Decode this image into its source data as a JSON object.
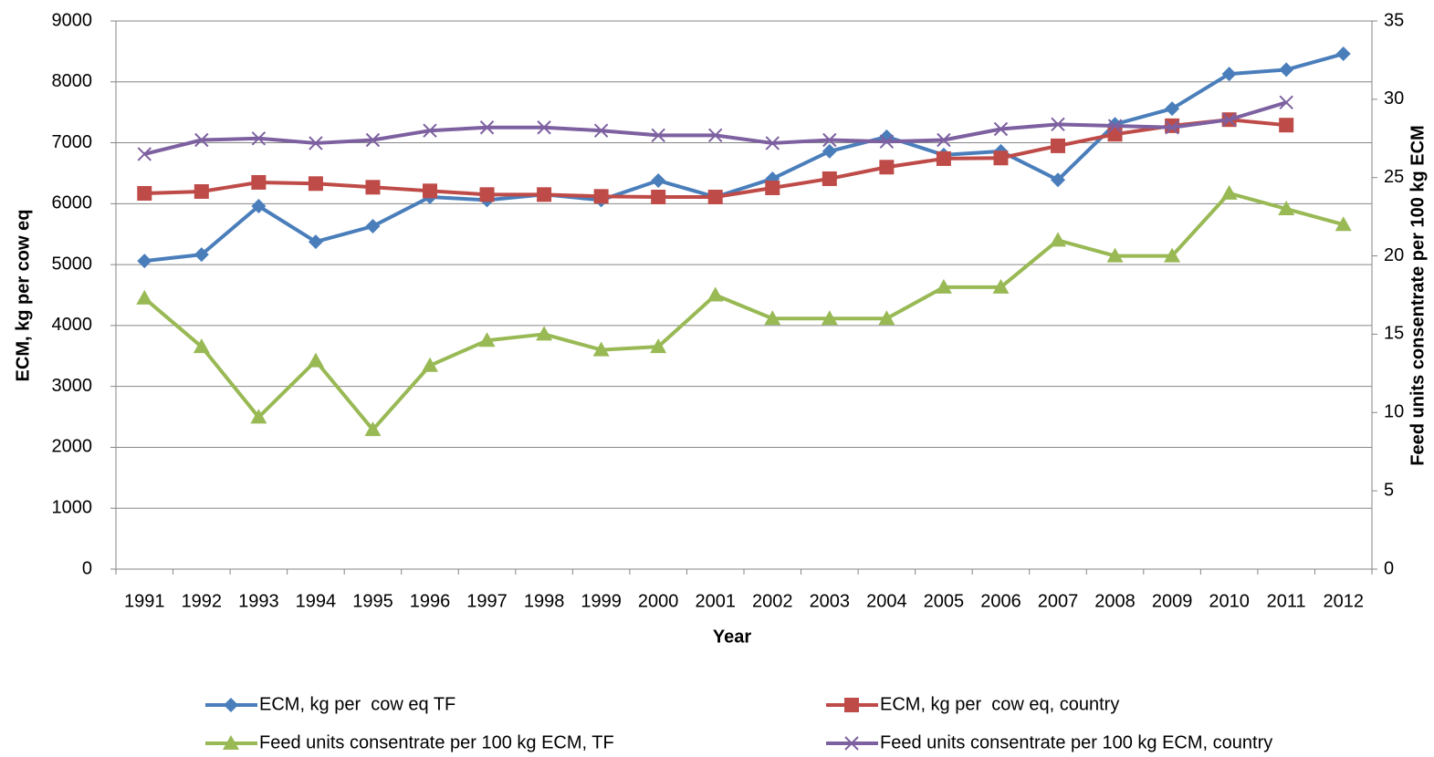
{
  "chart_data": {
    "type": "line",
    "categories": [
      "1991",
      "1992",
      "1993",
      "1994",
      "1995",
      "1996",
      "1997",
      "1998",
      "1999",
      "2000",
      "2001",
      "2002",
      "2003",
      "2004",
      "2005",
      "2006",
      "2007",
      "2008",
      "2009",
      "2010",
      "2011",
      "2012"
    ],
    "x_label": "Year",
    "y_label": "ECM, kg per cow eq",
    "y2_label": "Feed units consentrate per 100 kg ECM",
    "ylim": [
      0,
      9000
    ],
    "yticks": [
      0,
      1000,
      2000,
      3000,
      4000,
      5000,
      6000,
      7000,
      8000,
      9000
    ],
    "y2lim": [
      0,
      35
    ],
    "y2ticks": [
      0,
      5,
      10,
      15,
      20,
      25,
      30,
      35
    ],
    "grid": true,
    "series": [
      {
        "name": "ECM, kg per  cow eq TF",
        "color": "#4a7ebb",
        "marker": "diamond",
        "values": [
          5060,
          5165,
          5960,
          5375,
          5630,
          6110,
          6060,
          6150,
          6060,
          6380,
          6110,
          6410,
          6860,
          7100,
          6800,
          6860,
          6390,
          7305,
          7560,
          8130,
          8200,
          8460
        ]
      },
      {
        "name": "ECM, kg per  cow eq, country",
        "color": "#be4b48",
        "marker": "square",
        "values": [
          6170,
          6200,
          6350,
          6330,
          6270,
          6210,
          6150,
          6150,
          6120,
          6110,
          6110,
          6260,
          6410,
          6600,
          6740,
          6750,
          6950,
          7140,
          7280,
          7380,
          7290,
          null
        ]
      },
      {
        "name": "Feed units consentrate per 100 kg ECM, TF",
        "color": "#98b954",
        "marker": "triangle",
        "axis": "y2",
        "values": [
          17.3,
          14.2,
          9.7,
          13.3,
          8.9,
          13.0,
          14.6,
          15.0,
          14.0,
          14.2,
          17.5,
          16.0,
          16.0,
          16.0,
          18.0,
          18.0,
          21.0,
          20.0,
          20.0,
          24.0,
          23.0,
          22.0
        ]
      },
      {
        "name": "Feed units consentrate per 100 kg ECM, country",
        "color": "#7d60a0",
        "marker": "x",
        "axis": "y2",
        "values": [
          26.5,
          27.4,
          27.5,
          27.2,
          27.4,
          28.0,
          28.2,
          28.2,
          28.0,
          27.7,
          27.7,
          27.2,
          27.4,
          27.3,
          27.4,
          28.1,
          28.4,
          28.3,
          28.2,
          28.7,
          29.8,
          null
        ]
      }
    ]
  }
}
